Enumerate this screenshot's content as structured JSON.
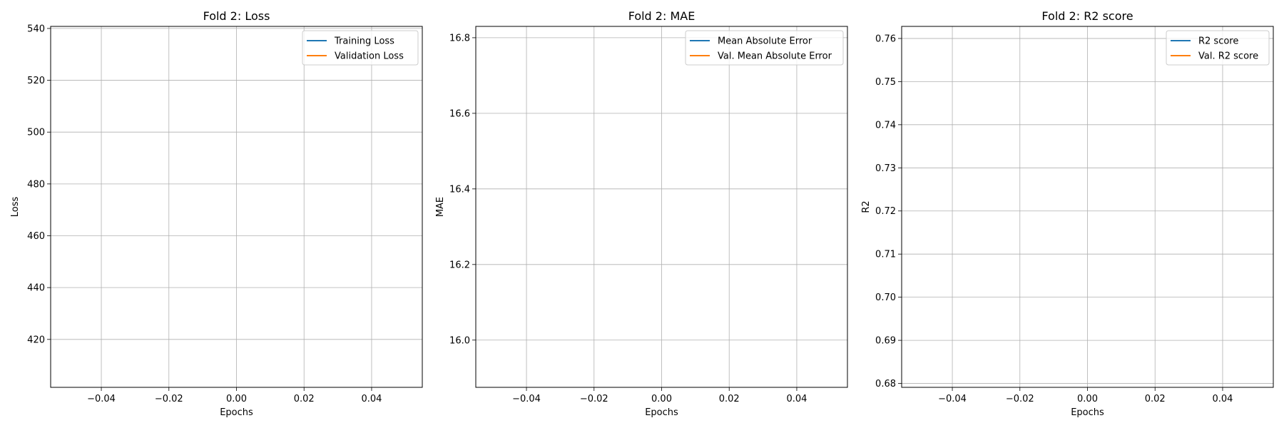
{
  "chart_data": [
    {
      "type": "line",
      "title": "Fold 2: Loss",
      "xlabel": "Epochs",
      "ylabel": "Loss",
      "xlim": [
        -0.055,
        0.055
      ],
      "ylim": [
        401.5,
        540.8
      ],
      "xticks": [
        -0.04,
        -0.02,
        0.0,
        0.02,
        0.04
      ],
      "xtick_labels": [
        "−0.04",
        "−0.02",
        "0.00",
        "0.02",
        "0.04"
      ],
      "yticks": [
        420,
        440,
        460,
        480,
        500,
        520,
        540
      ],
      "ytick_labels": [
        "420",
        "440",
        "460",
        "480",
        "500",
        "520",
        "540"
      ],
      "grid": true,
      "legend_position": "upper right",
      "series": [
        {
          "name": "Training Loss",
          "color": "#1f77b4",
          "x": [],
          "y": []
        },
        {
          "name": "Validation Loss",
          "color": "#ff7f0e",
          "x": [],
          "y": []
        }
      ]
    },
    {
      "type": "line",
      "title": "Fold 2: MAE",
      "xlabel": "Epochs",
      "ylabel": "MAE",
      "xlim": [
        -0.055,
        0.055
      ],
      "ylim": [
        15.875,
        16.83
      ],
      "xticks": [
        -0.04,
        -0.02,
        0.0,
        0.02,
        0.04
      ],
      "xtick_labels": [
        "−0.04",
        "−0.02",
        "0.00",
        "0.02",
        "0.04"
      ],
      "yticks": [
        16.0,
        16.2,
        16.4,
        16.6,
        16.8
      ],
      "ytick_labels": [
        "16.0",
        "16.2",
        "16.4",
        "16.6",
        "16.8"
      ],
      "grid": true,
      "legend_position": "upper right",
      "series": [
        {
          "name": "Mean Absolute Error",
          "color": "#1f77b4",
          "x": [],
          "y": []
        },
        {
          "name": "Val. Mean Absolute Error",
          "color": "#ff7f0e",
          "x": [],
          "y": []
        }
      ]
    },
    {
      "type": "line",
      "title": "Fold 2: R2 score",
      "xlabel": "Epochs",
      "ylabel": "R2",
      "xlim": [
        -0.055,
        0.055
      ],
      "ylim": [
        0.6791,
        0.7628
      ],
      "xticks": [
        -0.04,
        -0.02,
        0.0,
        0.02,
        0.04
      ],
      "xtick_labels": [
        "−0.04",
        "−0.02",
        "0.00",
        "0.02",
        "0.04"
      ],
      "yticks": [
        0.68,
        0.69,
        0.7,
        0.71,
        0.72,
        0.73,
        0.74,
        0.75,
        0.76
      ],
      "ytick_labels": [
        "0.68",
        "0.69",
        "0.70",
        "0.71",
        "0.72",
        "0.73",
        "0.74",
        "0.75",
        "0.76"
      ],
      "grid": true,
      "legend_position": "upper right",
      "series": [
        {
          "name": "R2 score",
          "color": "#1f77b4",
          "x": [],
          "y": []
        },
        {
          "name": "Val. R2 score",
          "color": "#ff7f0e",
          "x": [],
          "y": []
        }
      ]
    }
  ]
}
